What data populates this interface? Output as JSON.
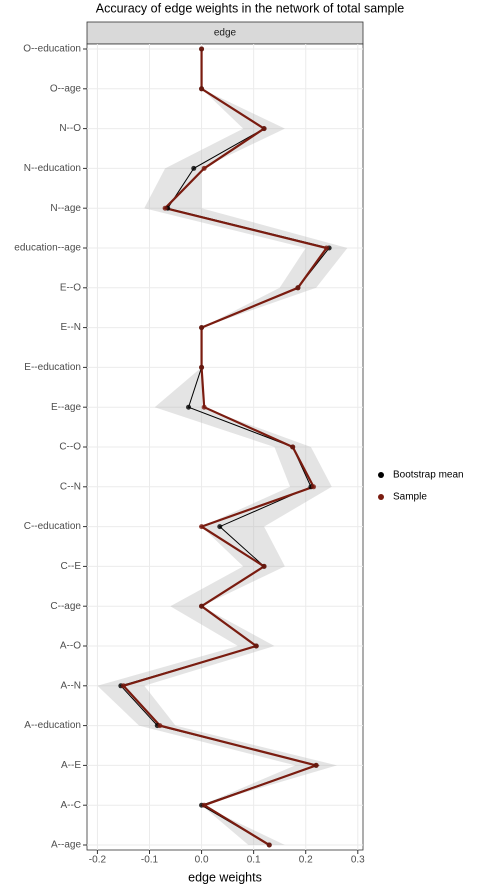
{
  "chart_data": {
    "type": "line",
    "title": "Accuracy of edge weights in the network of total sample",
    "strip": "edge",
    "xlabel": "edge weights",
    "categories": [
      "O--education",
      "O--age",
      "N--O",
      "N--education",
      "N--age",
      "education--age",
      "E--O",
      "E--N",
      "E--education",
      "E--age",
      "C--O",
      "C--N",
      "C--education",
      "C--E",
      "C--age",
      "A--O",
      "A--N",
      "A--education",
      "A--E",
      "A--C",
      "A--age"
    ],
    "series": [
      {
        "name": "Bootstrap mean",
        "color": "#000000",
        "values": [
          0,
          0,
          0.12,
          -0.015,
          -0.065,
          0.245,
          0.185,
          0,
          0,
          -0.025,
          0.175,
          0.21,
          0.035,
          0.12,
          0,
          0.105,
          -0.155,
          -0.085,
          0.22,
          0,
          0.13
        ]
      },
      {
        "name": "Sample",
        "color": "#7a1c10",
        "values": [
          0,
          0,
          0.12,
          0.005,
          -0.07,
          0.24,
          0.185,
          0,
          0,
          0.005,
          0.175,
          0.215,
          0,
          0.12,
          0,
          0.105,
          -0.15,
          -0.08,
          0.22,
          0.005,
          0.13
        ]
      }
    ],
    "ci_lower": [
      0,
      0,
      0.08,
      -0.07,
      -0.11,
      0.2,
      0.15,
      0,
      0,
      -0.09,
      0.14,
      0.17,
      0,
      0.08,
      -0.06,
      0.07,
      -0.2,
      -0.12,
      0.18,
      0,
      0.09
    ],
    "ci_upper": [
      0,
      0,
      0.16,
      0,
      0,
      0.28,
      0.22,
      0,
      0,
      0,
      0.21,
      0.25,
      0.12,
      0.16,
      0,
      0.14,
      -0.11,
      -0.05,
      0.26,
      0,
      0.16
    ],
    "xlim": [
      -0.22,
      0.31
    ],
    "xticks": [
      -0.2,
      -0.1,
      {
        "value": 0,
        "label": "0.0"
      },
      0.1,
      0.2,
      0.3
    ],
    "grid": true
  }
}
